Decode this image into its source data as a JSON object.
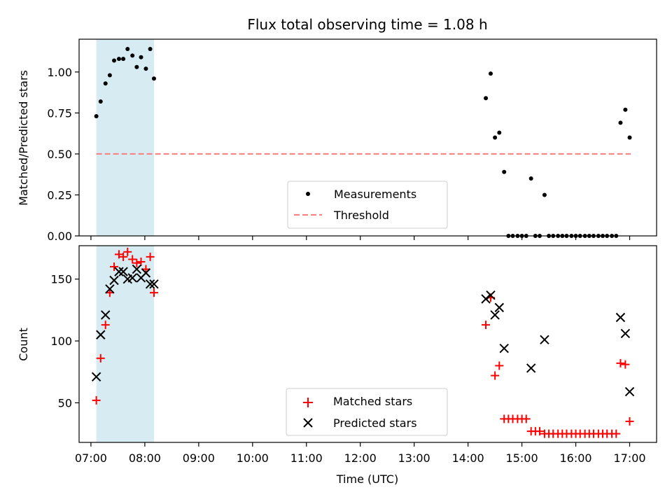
{
  "chart_data": [
    {
      "type": "scatter",
      "title": "Flux total observing time = 1.08 h",
      "xlabel": "",
      "ylabel": "Matched/Predicted stars",
      "xlim": [
        6.78,
        17.5
      ],
      "ylim": [
        0,
        1.2
      ],
      "yticks": [
        0,
        0.25,
        0.5,
        0.75,
        1.0
      ],
      "ytick_labels": [
        "0.00",
        "0.25",
        "0.50",
        "0.75",
        "1.00"
      ],
      "highlight_span": [
        7.1,
        8.17
      ],
      "threshold": {
        "name": "Threshold",
        "value": 0.5,
        "x_range": [
          7.1,
          17.02
        ],
        "color": "#f87d7d"
      },
      "series": [
        {
          "name": "Measurements",
          "marker": "dot",
          "color": "#000000",
          "x": [
            7.1,
            7.18,
            7.27,
            7.35,
            7.43,
            7.52,
            7.6,
            7.68,
            7.77,
            7.85,
            7.93,
            8.02,
            8.1,
            8.17,
            14.33,
            14.42,
            14.5,
            14.58,
            14.67,
            14.75,
            14.83,
            14.92,
            15.0,
            15.08,
            15.17,
            15.25,
            15.33,
            15.42,
            15.5,
            15.58,
            15.67,
            15.75,
            15.83,
            15.92,
            16.0,
            16.08,
            16.17,
            16.25,
            16.33,
            16.42,
            16.5,
            16.58,
            16.67,
            16.75,
            16.83,
            16.92,
            17.0
          ],
          "y": [
            0.73,
            0.82,
            0.93,
            0.98,
            1.07,
            1.08,
            1.08,
            1.14,
            1.1,
            1.03,
            1.09,
            1.02,
            1.14,
            0.96,
            0.84,
            0.99,
            0.6,
            0.63,
            0.39,
            0.0,
            0.0,
            0.0,
            0.0,
            0.0,
            0.35,
            0.0,
            0.0,
            0.25,
            0.0,
            0.0,
            0.0,
            0.0,
            0.0,
            0.0,
            0.0,
            0.0,
            0.0,
            0.0,
            0.0,
            0.0,
            0.0,
            0.0,
            0.0,
            0.0,
            0.69,
            0.77,
            0.6
          ]
        }
      ],
      "legend": [
        "Measurements",
        "Threshold"
      ],
      "legend_position": "bottom-center"
    },
    {
      "type": "scatter",
      "title": "",
      "xlabel": "Time (UTC)",
      "ylabel": "Count",
      "xlim": [
        6.78,
        17.5
      ],
      "ylim": [
        18,
        177
      ],
      "yticks": [
        50,
        100,
        150
      ],
      "ytick_labels": [
        "50",
        "100",
        "150"
      ],
      "xticks": [
        7,
        8,
        9,
        10,
        11,
        12,
        13,
        14,
        15,
        16,
        17
      ],
      "xtick_labels": [
        "07:00",
        "08:00",
        "09:00",
        "10:00",
        "11:00",
        "12:00",
        "13:00",
        "14:00",
        "15:00",
        "16:00",
        "17:00"
      ],
      "highlight_span": [
        7.1,
        8.17
      ],
      "series": [
        {
          "name": "Matched stars",
          "marker": "plus",
          "color": "#ff0000",
          "x": [
            7.1,
            7.18,
            7.27,
            7.35,
            7.43,
            7.52,
            7.6,
            7.68,
            7.77,
            7.85,
            7.93,
            8.02,
            8.1,
            8.17,
            14.33,
            14.42,
            14.5,
            14.58,
            14.67,
            14.75,
            14.83,
            14.92,
            15.0,
            15.08,
            15.17,
            15.25,
            15.33,
            15.42,
            15.5,
            15.58,
            15.67,
            15.75,
            15.83,
            15.92,
            16.0,
            16.08,
            16.17,
            16.25,
            16.33,
            16.42,
            16.5,
            16.58,
            16.67,
            16.75,
            16.83,
            16.92,
            17.0
          ],
          "y": [
            52,
            86,
            113,
            139,
            160,
            170,
            168,
            172,
            166,
            163,
            164,
            158,
            168,
            139,
            113,
            135,
            72,
            80,
            37,
            37,
            37,
            37,
            37,
            37,
            27,
            27,
            27,
            25,
            25,
            25,
            25,
            25,
            25,
            25,
            25,
            25,
            25,
            25,
            25,
            25,
            25,
            25,
            25,
            25,
            82,
            81,
            35
          ]
        },
        {
          "name": "Predicted stars",
          "marker": "x",
          "color": "#000000",
          "x": [
            7.1,
            7.18,
            7.27,
            7.35,
            7.43,
            7.52,
            7.6,
            7.68,
            7.77,
            7.85,
            7.93,
            8.02,
            8.1,
            8.17,
            14.33,
            14.42,
            14.5,
            14.58,
            14.67,
            15.17,
            15.42,
            16.83,
            16.92,
            17.0
          ],
          "y": [
            71,
            105,
            121,
            142,
            149,
            156,
            156,
            150,
            151,
            158,
            151,
            155,
            146,
            146,
            134,
            137,
            121,
            127,
            94,
            78,
            101,
            119,
            106,
            59
          ]
        }
      ],
      "legend": [
        "Matched stars",
        "Predicted stars"
      ],
      "legend_position": "bottom-center"
    }
  ]
}
